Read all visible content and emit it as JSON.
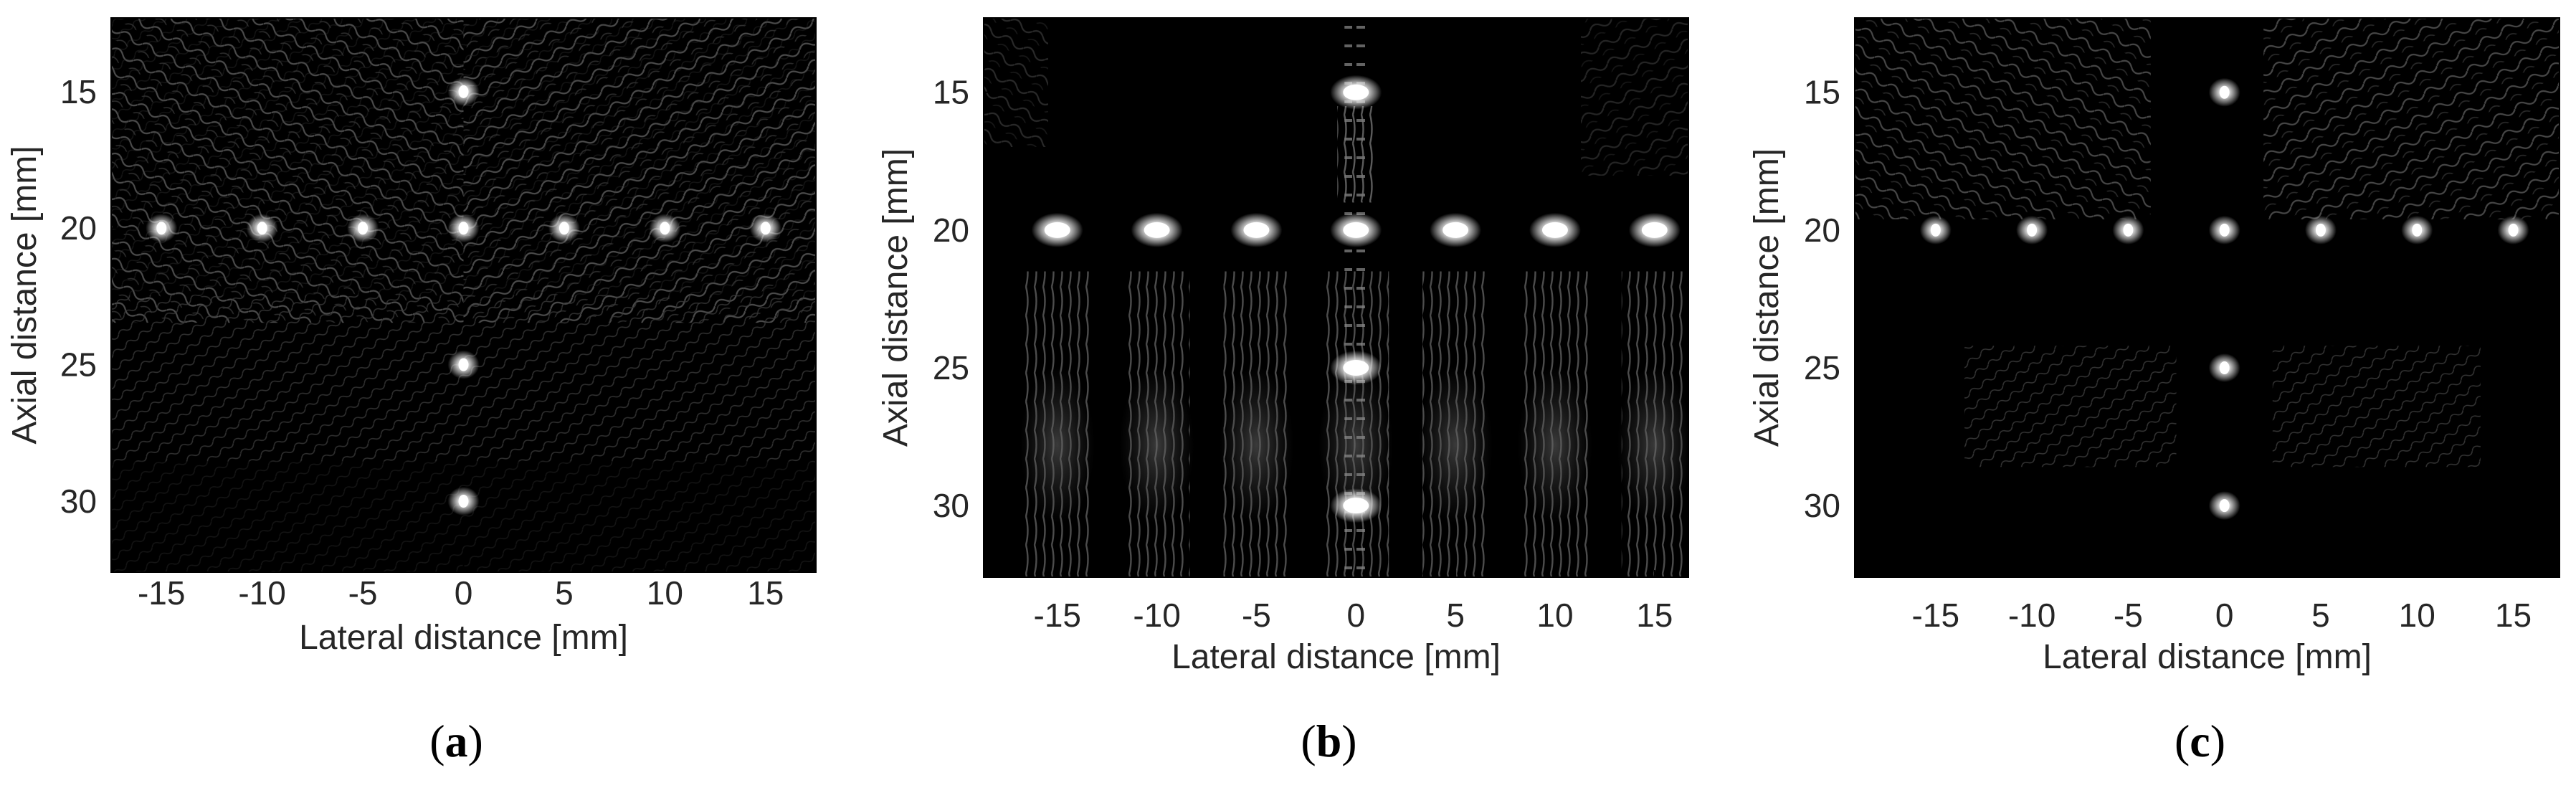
{
  "figure": {
    "panels": [
      {
        "caption_open": "(",
        "caption_letter": "a",
        "caption_close": ")"
      },
      {
        "caption_open": "(",
        "caption_letter": "b",
        "caption_close": ")"
      },
      {
        "caption_open": "(",
        "caption_letter": "c",
        "caption_close": ")"
      }
    ]
  },
  "chart_data": [
    {
      "type": "heatmap",
      "title": "",
      "xlabel": "Lateral distance [mm]",
      "ylabel": "Axial distance [mm]",
      "xlim": [
        -17.5,
        17.5
      ],
      "ylim": [
        12.3,
        32.6
      ],
      "y_inverted": true,
      "xticks": [
        -15,
        -10,
        -5,
        0,
        5,
        10,
        15
      ],
      "yticks": [
        15,
        20,
        25,
        30
      ],
      "colormap": "gray",
      "grid": false,
      "point_targets": [
        {
          "x": 0,
          "y": 15
        },
        {
          "x": -15,
          "y": 20
        },
        {
          "x": -10,
          "y": 20
        },
        {
          "x": -5,
          "y": 20
        },
        {
          "x": 0,
          "y": 20
        },
        {
          "x": 5,
          "y": 20
        },
        {
          "x": 10,
          "y": 20
        },
        {
          "x": 15,
          "y": 20
        },
        {
          "x": 0,
          "y": 25
        },
        {
          "x": 0,
          "y": 30
        }
      ]
    },
    {
      "type": "heatmap",
      "title": "",
      "xlabel": "Lateral distance [mm]",
      "ylabel": "Axial distance [mm]",
      "xlim": [
        -18.7,
        16.7
      ],
      "ylim": [
        12.3,
        32.6
      ],
      "y_inverted": true,
      "xticks": [
        -15,
        -10,
        -5,
        0,
        5,
        10,
        15
      ],
      "yticks": [
        15,
        20,
        25,
        30
      ],
      "colormap": "gray",
      "grid": false,
      "point_targets": [
        {
          "x": 0,
          "y": 15
        },
        {
          "x": -15,
          "y": 20
        },
        {
          "x": -10,
          "y": 20
        },
        {
          "x": -5,
          "y": 20
        },
        {
          "x": 0,
          "y": 20
        },
        {
          "x": 5,
          "y": 20
        },
        {
          "x": 10,
          "y": 20
        },
        {
          "x": 15,
          "y": 20
        },
        {
          "x": 0,
          "y": 25
        },
        {
          "x": 0,
          "y": 30
        }
      ]
    },
    {
      "type": "heatmap",
      "title": "",
      "xlabel": "Lateral distance [mm]",
      "ylabel": "Axial distance [mm]",
      "xlim": [
        -19.2,
        17.4
      ],
      "ylim": [
        12.3,
        32.6
      ],
      "y_inverted": true,
      "xticks": [
        -15,
        -10,
        -5,
        0,
        5,
        10,
        15
      ],
      "yticks": [
        15,
        20,
        25,
        30
      ],
      "colormap": "gray",
      "grid": false,
      "point_targets": [
        {
          "x": 0,
          "y": 15
        },
        {
          "x": -15,
          "y": 20
        },
        {
          "x": -10,
          "y": 20
        },
        {
          "x": -5,
          "y": 20
        },
        {
          "x": 0,
          "y": 20
        },
        {
          "x": 5,
          "y": 20
        },
        {
          "x": 10,
          "y": 20
        },
        {
          "x": 15,
          "y": 20
        },
        {
          "x": 0,
          "y": 25
        },
        {
          "x": 0,
          "y": 30
        }
      ]
    }
  ]
}
